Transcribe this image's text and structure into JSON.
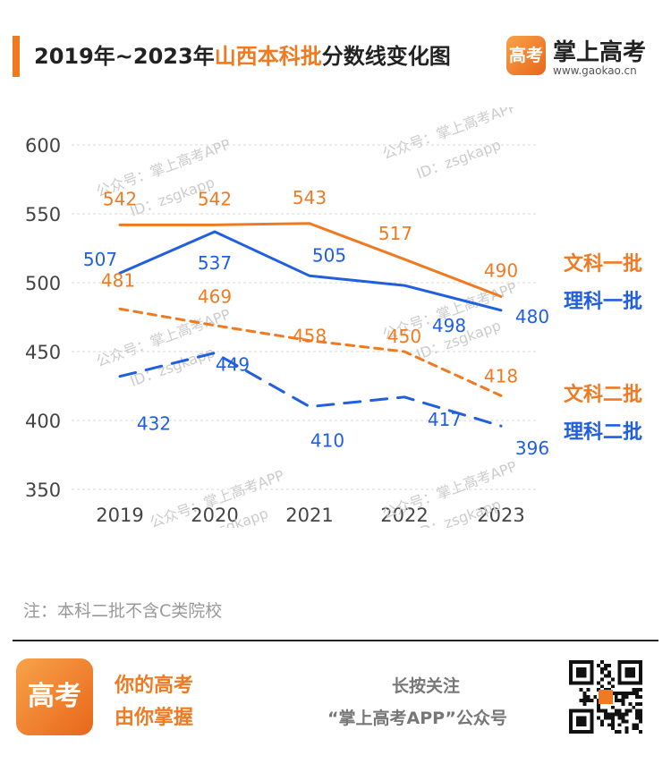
{
  "header": {
    "title_prefix": "2019年~2023年",
    "title_highlight": "山西本科批",
    "title_suffix": "分数线变化图",
    "logo_glyph": "高考",
    "brand_name": "掌上高考",
    "brand_url": "www.gaokao.cn"
  },
  "colors": {
    "orange": "#f07a22",
    "blue": "#1f5fe0",
    "grid": "#d9d9d9",
    "axis_text": "#444444",
    "watermark": "#cccccc"
  },
  "watermark": {
    "line1": "公众号：掌上高考APP",
    "line2": "ID：zsgkapp"
  },
  "chart_data": {
    "type": "line",
    "x": [
      "2019",
      "2020",
      "2021",
      "2022",
      "2023"
    ],
    "ylim": [
      350,
      600
    ],
    "yticks": [
      350,
      400,
      450,
      500,
      550,
      600
    ],
    "grid": true,
    "legend_position": "right",
    "series": [
      {
        "name": "文科一批",
        "values": [
          542,
          542,
          543,
          517,
          490
        ],
        "color": "#f07a22",
        "dash": false
      },
      {
        "name": "理科一批",
        "values": [
          507,
          537,
          505,
          498,
          480
        ],
        "color": "#1f5fe0",
        "dash": false
      },
      {
        "name": "文科二批",
        "values": [
          481,
          469,
          458,
          450,
          418
        ],
        "color": "#f07a22",
        "dash": true
      },
      {
        "name": "理科二批",
        "values": [
          432,
          449,
          410,
          417,
          396
        ],
        "color": "#1f5fe0",
        "dash": true
      }
    ]
  },
  "note": "注：本科二批不含C类院校",
  "footer": {
    "logo_glyph": "高考",
    "slogan_1": "你的高考",
    "slogan_2": "由你掌握",
    "follow_1": "长按关注",
    "follow_2": "“掌上高考APP”公众号"
  }
}
